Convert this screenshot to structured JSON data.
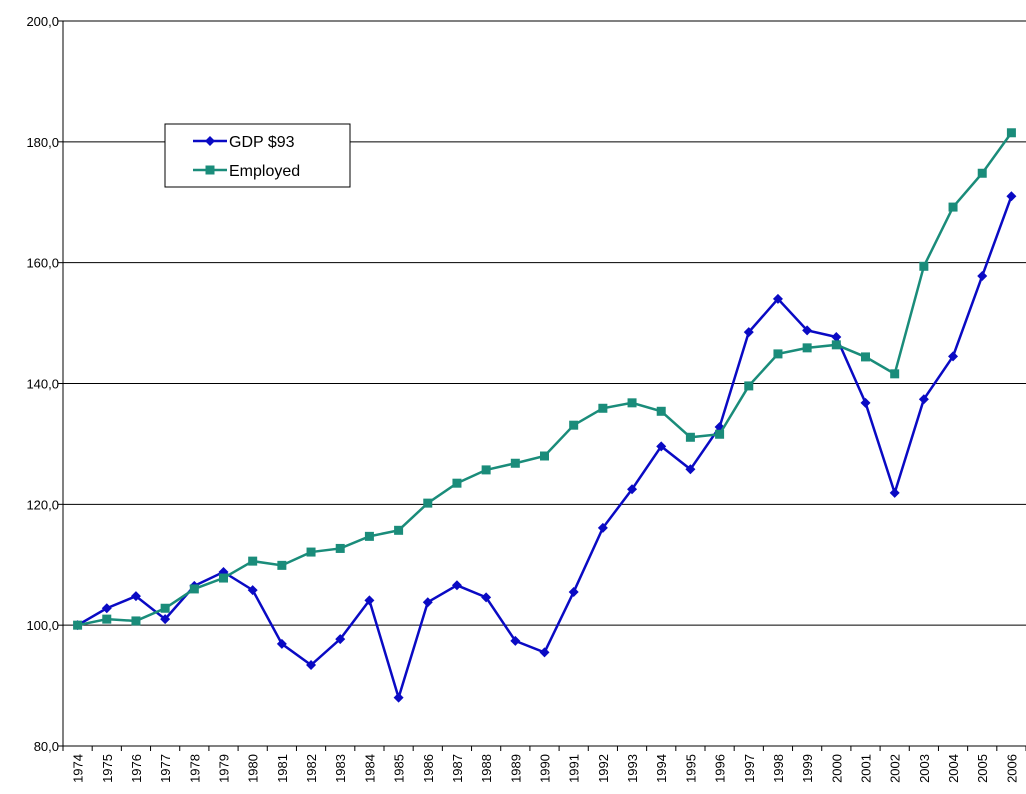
{
  "chart_data": {
    "type": "line",
    "categories": [
      "1974",
      "1975",
      "1976",
      "1977",
      "1978",
      "1979",
      "1980",
      "1981",
      "1982",
      "1983",
      "1984",
      "1985",
      "1986",
      "1987",
      "1988",
      "1989",
      "1990",
      "1991",
      "1992",
      "1993",
      "1994",
      "1995",
      "1996",
      "1997",
      "1998",
      "1999",
      "2000",
      "2001",
      "2002",
      "2003",
      "2004",
      "2005",
      "2006"
    ],
    "series": [
      {
        "name": "GDP $93",
        "color": "#0a0ac4",
        "marker": "diamond",
        "values": [
          100.0,
          102.8,
          104.8,
          101.0,
          106.5,
          108.8,
          105.8,
          96.9,
          93.4,
          97.7,
          104.1,
          88.0,
          103.8,
          106.6,
          104.6,
          97.4,
          95.5,
          105.5,
          116.1,
          122.5,
          129.6,
          125.8,
          132.8,
          148.5,
          154.0,
          148.8,
          147.7,
          136.8,
          121.9,
          137.4,
          144.5,
          157.8,
          171.0
        ]
      },
      {
        "name": "Employed",
        "color": "#1a8c7a",
        "marker": "square",
        "values": [
          100.0,
          101.0,
          100.7,
          102.8,
          106.0,
          107.8,
          110.6,
          109.9,
          112.1,
          112.7,
          114.7,
          115.7,
          120.2,
          123.5,
          125.7,
          126.8,
          128.0,
          133.1,
          135.9,
          136.8,
          135.4,
          131.1,
          131.6,
          139.6,
          144.9,
          145.9,
          146.4,
          144.4,
          141.6,
          159.4,
          169.2,
          174.8,
          181.5
        ]
      }
    ],
    "ylim": [
      80,
      200
    ],
    "yticks": [
      {
        "value": 80,
        "label": "80,0"
      },
      {
        "value": 100,
        "label": "100,0"
      },
      {
        "value": 120,
        "label": "120,0"
      },
      {
        "value": 140,
        "label": "140,0"
      },
      {
        "value": 160,
        "label": "160,0"
      },
      {
        "value": 180,
        "label": "180,0"
      },
      {
        "value": 200,
        "label": "200,0"
      }
    ],
    "grid": true,
    "legend": "upper-left"
  }
}
